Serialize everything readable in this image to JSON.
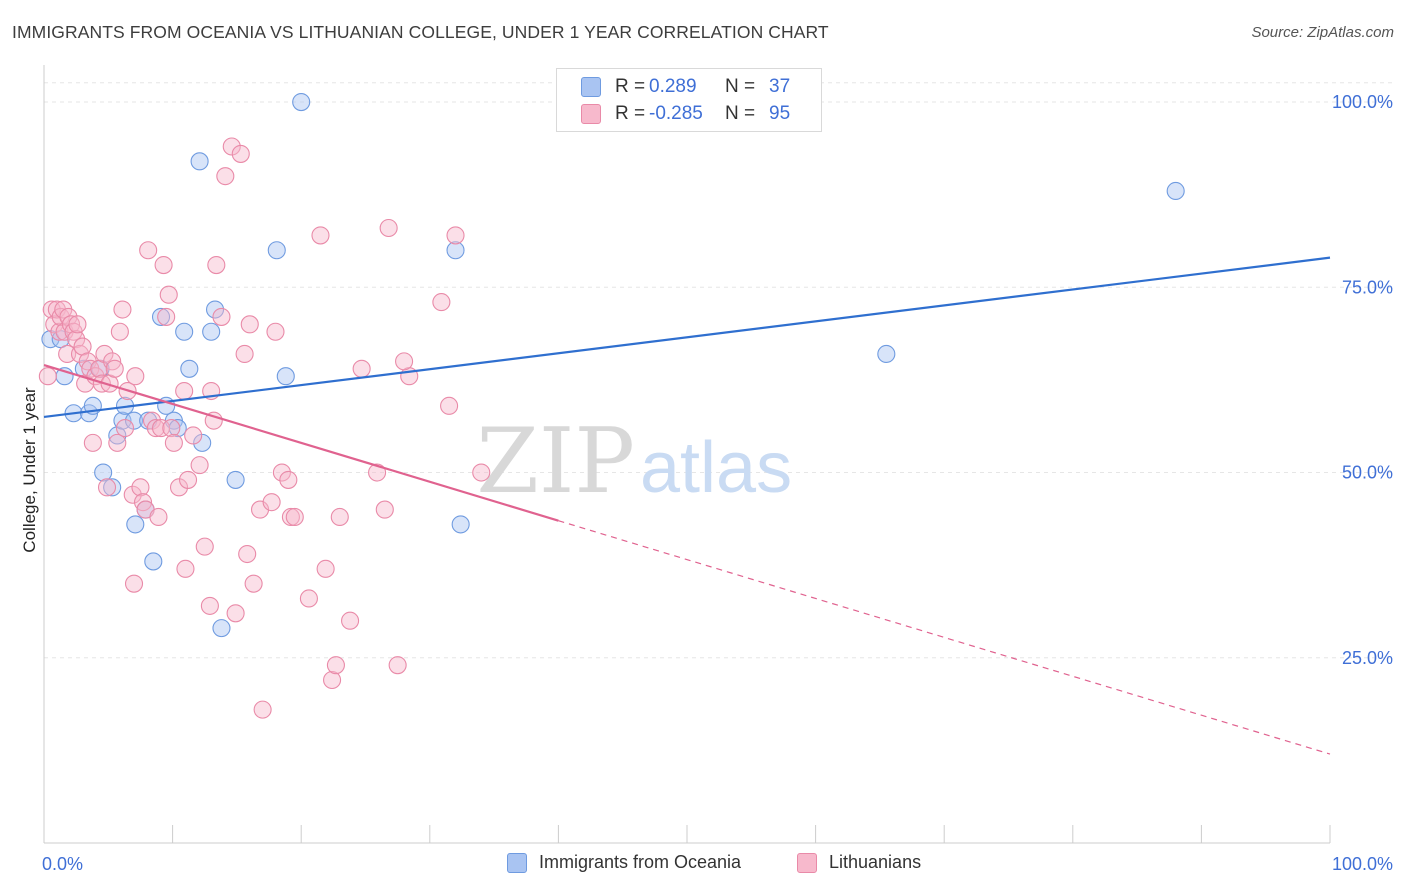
{
  "title": "IMMIGRANTS FROM OCEANIA VS LITHUANIAN COLLEGE, UNDER 1 YEAR CORRELATION CHART",
  "source": "Source: ZipAtlas.com",
  "watermark": {
    "part1": "ZIP",
    "part2": "atlas"
  },
  "legend": [
    {
      "r_label": "R =",
      "r_value": "0.289",
      "n_label": "N =",
      "n_value": "37",
      "color": "#a9c4f2",
      "border": "#6f9be0"
    },
    {
      "r_label": "R =",
      "r_value": "-0.285",
      "n_label": "N =",
      "n_value": "95",
      "color": "#f7b9cc",
      "border": "#e98aa8"
    }
  ],
  "bottom_legend": [
    {
      "label": "Immigrants from Oceania",
      "color": "#a9c4f2",
      "border": "#6f9be0"
    },
    {
      "label": "Lithuanians",
      "color": "#f7b9cc",
      "border": "#e98aa8"
    }
  ],
  "chart_data": {
    "type": "scatter",
    "title": "IMMIGRANTS FROM OCEANIA VS LITHUANIAN COLLEGE, UNDER 1 YEAR CORRELATION CHART",
    "xlabel": "",
    "ylabel": "College, Under 1 year",
    "xlim": [
      0,
      100
    ],
    "ylim": [
      0,
      105
    ],
    "x_tick_labels": [
      "0.0%",
      "100.0%"
    ],
    "y_ticks": [
      25,
      50,
      75,
      100
    ],
    "y_tick_labels": [
      "25.0%",
      "50.0%",
      "75.0%",
      "100.0%"
    ],
    "grid": true,
    "series": [
      {
        "name": "Immigrants from Oceania",
        "color": "#6f9be0",
        "fill": "#a9c4f2",
        "line_color": "#2f6fcf",
        "trend": {
          "x": [
            0,
            100
          ],
          "y": [
            57.5,
            79.0
          ]
        },
        "points": [
          [
            0.5,
            68
          ],
          [
            1.3,
            68
          ],
          [
            1.6,
            63
          ],
          [
            2.3,
            58
          ],
          [
            3.1,
            64
          ],
          [
            3.5,
            58
          ],
          [
            3.8,
            59
          ],
          [
            4.4,
            64
          ],
          [
            4.6,
            50
          ],
          [
            5.3,
            48
          ],
          [
            5.7,
            55
          ],
          [
            6.1,
            57
          ],
          [
            6.3,
            59
          ],
          [
            7.0,
            57
          ],
          [
            7.1,
            43
          ],
          [
            7.9,
            45
          ],
          [
            8.1,
            57
          ],
          [
            8.5,
            38
          ],
          [
            9.1,
            71
          ],
          [
            9.5,
            59
          ],
          [
            10.1,
            57
          ],
          [
            10.4,
            56
          ],
          [
            10.9,
            69
          ],
          [
            11.3,
            64
          ],
          [
            12.1,
            92
          ],
          [
            12.3,
            54
          ],
          [
            13.0,
            69
          ],
          [
            13.3,
            72
          ],
          [
            13.8,
            29
          ],
          [
            14.9,
            49
          ],
          [
            18.1,
            80
          ],
          [
            18.8,
            63
          ],
          [
            20.0,
            100
          ],
          [
            32.0,
            80
          ],
          [
            32.4,
            43
          ],
          [
            65.5,
            66
          ],
          [
            88.0,
            88
          ]
        ]
      },
      {
        "name": "Lithuanians",
        "color": "#e98aa8",
        "fill": "#f7b9cc",
        "line_color": "#e0628f",
        "trend": {
          "x": [
            0,
            40
          ],
          "y": [
            64.5,
            43.5
          ]
        },
        "trend_dashed": {
          "x": [
            40,
            100
          ],
          "y": [
            43.5,
            12.0
          ]
        },
        "points": [
          [
            0.3,
            63
          ],
          [
            0.6,
            72
          ],
          [
            0.8,
            70
          ],
          [
            1.0,
            72
          ],
          [
            1.2,
            69
          ],
          [
            1.3,
            71
          ],
          [
            1.5,
            72
          ],
          [
            1.6,
            69
          ],
          [
            1.8,
            66
          ],
          [
            1.9,
            71
          ],
          [
            2.1,
            70
          ],
          [
            2.3,
            69
          ],
          [
            2.5,
            68
          ],
          [
            2.6,
            70
          ],
          [
            2.8,
            66
          ],
          [
            3.0,
            67
          ],
          [
            3.2,
            62
          ],
          [
            3.4,
            65
          ],
          [
            3.6,
            64
          ],
          [
            3.8,
            54
          ],
          [
            4.0,
            63
          ],
          [
            4.3,
            64
          ],
          [
            4.5,
            62
          ],
          [
            4.7,
            66
          ],
          [
            4.9,
            48
          ],
          [
            5.1,
            62
          ],
          [
            5.3,
            65
          ],
          [
            5.5,
            64
          ],
          [
            5.7,
            54
          ],
          [
            5.9,
            69
          ],
          [
            6.1,
            72
          ],
          [
            6.3,
            56
          ],
          [
            6.5,
            61
          ],
          [
            6.9,
            47
          ],
          [
            7.1,
            63
          ],
          [
            7.5,
            48
          ],
          [
            7.7,
            46
          ],
          [
            7.9,
            45
          ],
          [
            8.1,
            80
          ],
          [
            8.4,
            57
          ],
          [
            8.7,
            56
          ],
          [
            8.9,
            44
          ],
          [
            9.1,
            56
          ],
          [
            9.3,
            78
          ],
          [
            9.5,
            71
          ],
          [
            9.7,
            74
          ],
          [
            9.9,
            56
          ],
          [
            10.1,
            54
          ],
          [
            10.5,
            48
          ],
          [
            10.9,
            61
          ],
          [
            11.2,
            49
          ],
          [
            11.6,
            55
          ],
          [
            12.1,
            51
          ],
          [
            12.5,
            40
          ],
          [
            12.9,
            32
          ],
          [
            13.0,
            61
          ],
          [
            13.2,
            57
          ],
          [
            13.4,
            78
          ],
          [
            13.8,
            71
          ],
          [
            14.1,
            90
          ],
          [
            14.6,
            94
          ],
          [
            14.9,
            31
          ],
          [
            15.3,
            93
          ],
          [
            15.6,
            66
          ],
          [
            15.8,
            39
          ],
          [
            16.0,
            70
          ],
          [
            16.3,
            35
          ],
          [
            16.8,
            45
          ],
          [
            17.7,
            46
          ],
          [
            18.0,
            69
          ],
          [
            18.5,
            50
          ],
          [
            19.2,
            44
          ],
          [
            19.5,
            44
          ],
          [
            20.6,
            33
          ],
          [
            21.5,
            82
          ],
          [
            21.9,
            37
          ],
          [
            22.4,
            22
          ],
          [
            22.7,
            24
          ],
          [
            23.0,
            44
          ],
          [
            23.8,
            30
          ],
          [
            24.7,
            64
          ],
          [
            25.9,
            50
          ],
          [
            26.5,
            45
          ],
          [
            26.8,
            83
          ],
          [
            27.5,
            24
          ],
          [
            28.4,
            63
          ],
          [
            30.9,
            73
          ],
          [
            31.5,
            59
          ],
          [
            32.0,
            82
          ],
          [
            34.0,
            50
          ],
          [
            28.0,
            65
          ],
          [
            19.0,
            49
          ],
          [
            7.0,
            35
          ],
          [
            11.0,
            37
          ],
          [
            17.0,
            18
          ]
        ]
      }
    ]
  }
}
